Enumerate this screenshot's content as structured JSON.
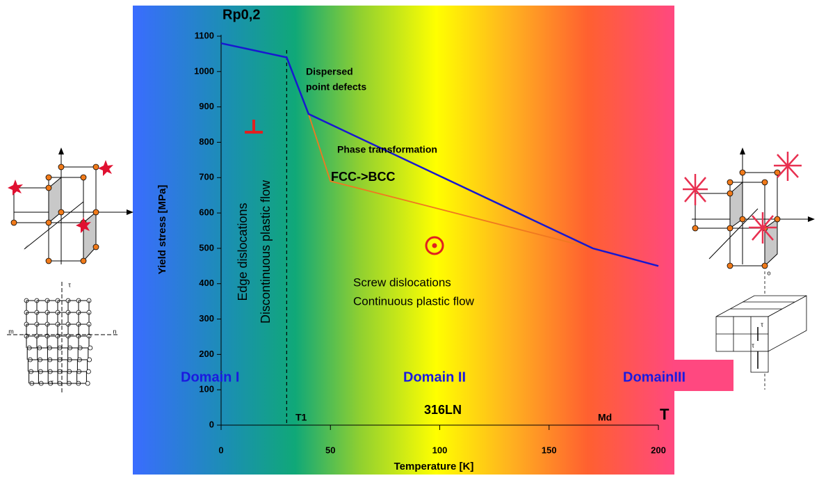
{
  "chart_data": {
    "type": "line",
    "x_label": "Temperature [K]",
    "y_label": "Yield stress [MPa]",
    "series": [
      {
        "color": "#1818d0",
        "x": [
          0,
          30,
          40,
          170,
          200
        ],
        "values": [
          1080,
          1040,
          880,
          500,
          450
        ]
      },
      {
        "color": "#f07820",
        "x": [
          40,
          50,
          170
        ],
        "values": [
          880,
          690,
          500
        ]
      }
    ],
    "xlim": [
      0,
      200
    ],
    "xticks": [
      0,
      50,
      100,
      150,
      200
    ],
    "ylim": [
      0,
      1100
    ],
    "yticks": [
      0,
      100,
      200,
      300,
      400,
      500,
      600,
      700,
      800,
      900,
      1000,
      1100
    ],
    "vline": 30,
    "annotations": [
      "Rp0,2",
      "Dispersed",
      "point defects",
      "Phase transformation",
      "FCC->BCC",
      "Screw dislocations",
      "Continuous plastic flow",
      "Edge dislocations",
      "Discontinuous plastic flow",
      "T1",
      "316LN",
      "Md",
      "T"
    ],
    "domains": [
      "Domain I",
      "Domain II",
      "DomainIII"
    ],
    "left_diagram_labels": [
      "τ",
      "τ",
      "m",
      "n"
    ],
    "right_diagram_labels": [
      "o",
      "τ",
      "τ"
    ]
  }
}
